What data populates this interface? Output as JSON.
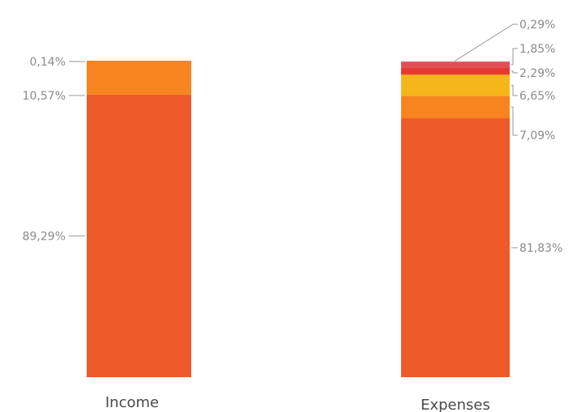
{
  "chart_data": {
    "type": "bar",
    "stacked": true,
    "categories": [
      "Income",
      "Expenses"
    ],
    "bars": [
      {
        "category": "Income",
        "segments": [
          {
            "value": 89.29,
            "label": "89,29%",
            "color": "#EE5A2A"
          },
          {
            "value": 10.57,
            "label": "10,57%",
            "color": "#F7841F"
          },
          {
            "value": 0.14,
            "label": "0,14%",
            "color": "#F7841F"
          }
        ]
      },
      {
        "category": "Expenses",
        "segments": [
          {
            "value": 81.83,
            "label": "81,83%",
            "color": "#EE5A2A"
          },
          {
            "value": 7.09,
            "label": "7,09%",
            "color": "#F7841F"
          },
          {
            "value": 6.65,
            "label": "6,65%",
            "color": "#F5B619"
          },
          {
            "value": 2.29,
            "label": "2,29%",
            "color": "#E53A32"
          },
          {
            "value": 1.85,
            "label": "1,85%",
            "color": "#E04F56"
          },
          {
            "value": 0.29,
            "label": "0,29%",
            "color": "#E8E4EC"
          }
        ]
      }
    ],
    "ylim": [
      0,
      100
    ],
    "grid": false,
    "legend": "none"
  }
}
